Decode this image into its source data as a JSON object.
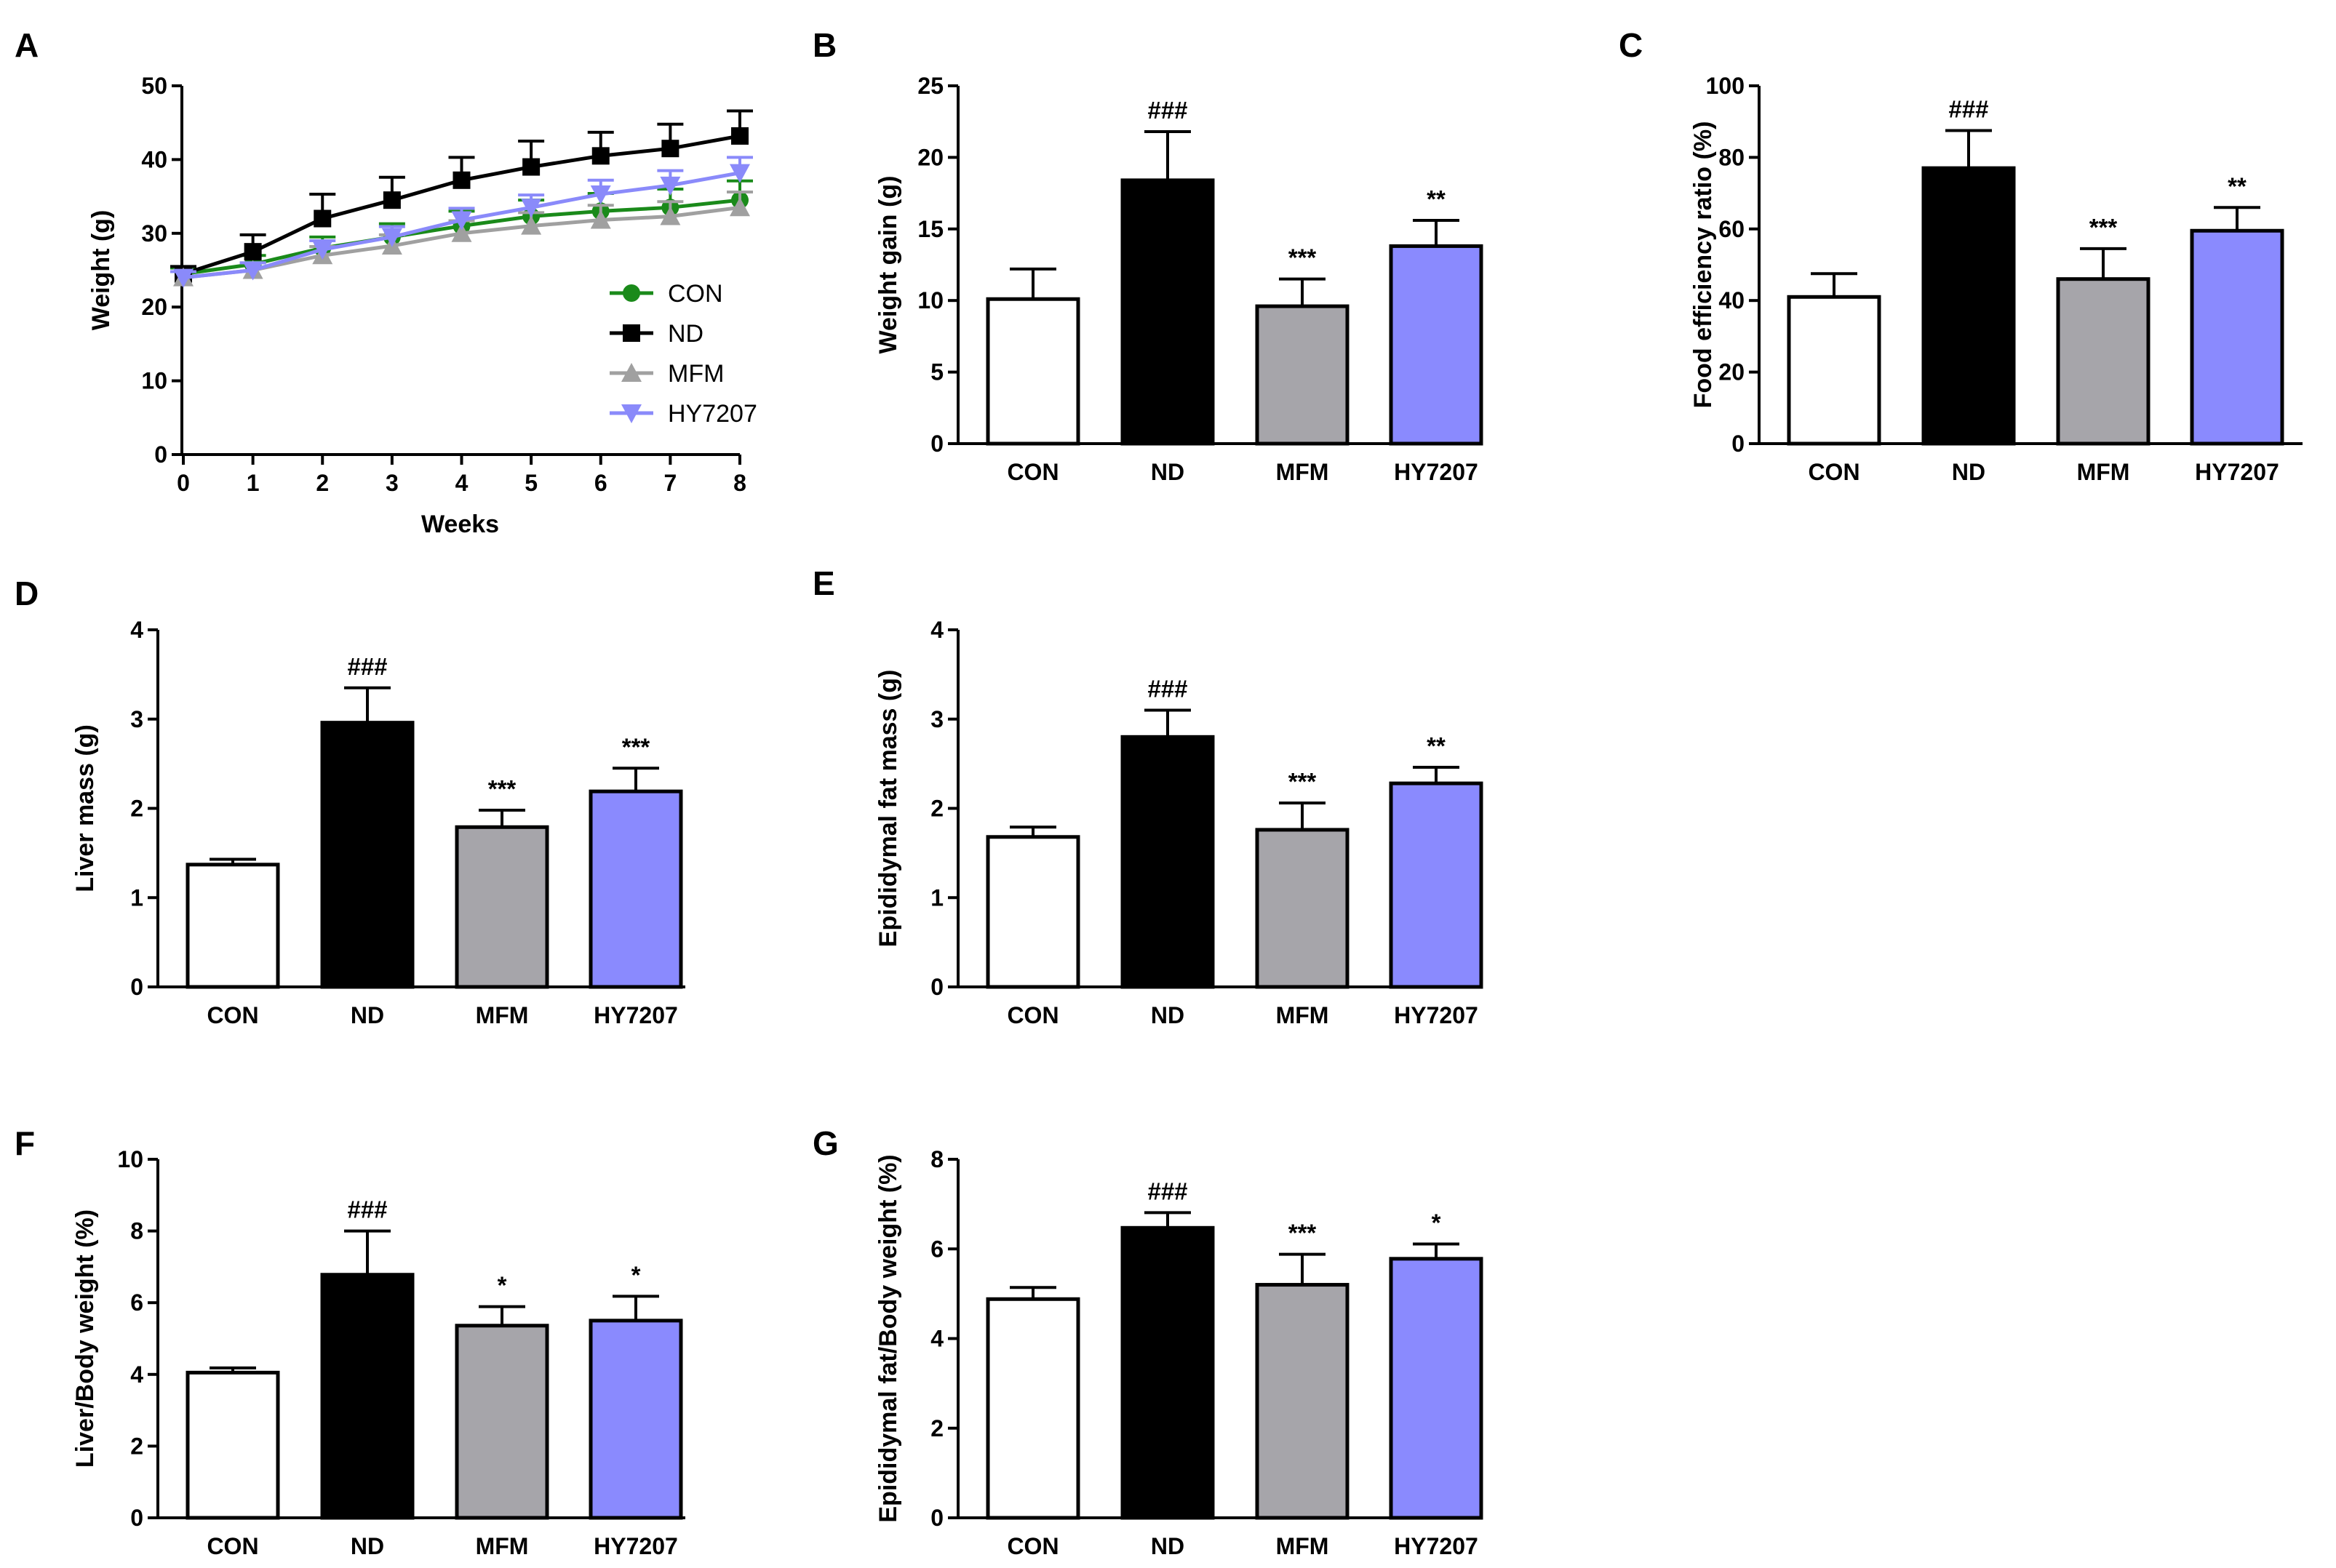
{
  "chart_data": [
    {
      "panel": "A",
      "type": "line",
      "xlabel": "Weeks",
      "ylabel": "Weight (g)",
      "x": [
        0,
        1,
        2,
        3,
        4,
        5,
        6,
        7,
        8
      ],
      "ylim": [
        0,
        50
      ],
      "yticks": [
        0,
        10,
        20,
        30,
        40,
        50
      ],
      "legend_position": "bottom-right",
      "series": [
        {
          "name": "CON",
          "color": "#1a8a1a",
          "marker": "circle",
          "values": [
            24.5,
            25.8,
            28.0,
            29.5,
            31.0,
            32.3,
            33.0,
            33.5,
            34.5
          ],
          "errors": [
            0.8,
            1.2,
            1.5,
            1.8,
            2.0,
            2.2,
            2.4,
            2.5,
            2.6
          ]
        },
        {
          "name": "ND",
          "color": "#000000",
          "marker": "square",
          "values": [
            24.5,
            27.5,
            32.0,
            34.5,
            37.2,
            39.0,
            40.5,
            41.5,
            43.2
          ],
          "errors": [
            1.0,
            2.3,
            3.3,
            3.1,
            3.1,
            3.5,
            3.2,
            3.3,
            3.4
          ]
        },
        {
          "name": "MFM",
          "color": "#a0a0a0",
          "marker": "triangle-up",
          "values": [
            24.0,
            25.0,
            27.0,
            28.3,
            30.0,
            31.0,
            31.8,
            32.3,
            33.5
          ],
          "errors": [
            0.8,
            1.0,
            1.2,
            1.5,
            1.7,
            1.8,
            2.0,
            2.0,
            2.1
          ]
        },
        {
          "name": "HY7207",
          "color": "#8a8afa",
          "marker": "triangle-down",
          "values": [
            24.0,
            25.0,
            27.8,
            29.5,
            31.8,
            33.5,
            35.3,
            36.5,
            38.2
          ],
          "errors": [
            0.8,
            1.0,
            1.2,
            1.4,
            1.6,
            1.7,
            1.9,
            2.0,
            2.1
          ]
        }
      ]
    },
    {
      "panel": "B",
      "type": "bar",
      "ylabel": "Weight gain (g)",
      "categories": [
        "CON",
        "ND",
        "MFM",
        "HY7207"
      ],
      "values": [
        10.1,
        18.4,
        9.6,
        13.8
      ],
      "errors": [
        2.1,
        3.4,
        1.9,
        1.8
      ],
      "colors": [
        "#ffffff",
        "#000000",
        "#a6a5aa",
        "#8a8afe"
      ],
      "annotations": [
        "",
        "###",
        "***",
        "**"
      ],
      "ylim": [
        0,
        25
      ],
      "yticks": [
        0,
        5,
        10,
        15,
        20,
        25
      ]
    },
    {
      "panel": "C",
      "type": "bar",
      "ylabel": "Food efficiency ratio (%)",
      "categories": [
        "CON",
        "ND",
        "MFM",
        "HY7207"
      ],
      "values": [
        41,
        77,
        46,
        59.5
      ],
      "errors": [
        6.5,
        10.5,
        8.5,
        6.5
      ],
      "colors": [
        "#ffffff",
        "#000000",
        "#a6a5aa",
        "#8a8afe"
      ],
      "annotations": [
        "",
        "###",
        "***",
        "**"
      ],
      "ylim": [
        0,
        100
      ],
      "yticks": [
        0,
        20,
        40,
        60,
        80,
        100
      ]
    },
    {
      "panel": "D",
      "type": "bar",
      "ylabel": "Liver mass (g)",
      "categories": [
        "CON",
        "ND",
        "MFM",
        "HY7207"
      ],
      "values": [
        1.37,
        2.96,
        1.79,
        2.19
      ],
      "errors": [
        0.06,
        0.39,
        0.19,
        0.26
      ],
      "colors": [
        "#ffffff",
        "#000000",
        "#a6a5aa",
        "#8a8afe"
      ],
      "annotations": [
        "",
        "###",
        "***",
        "***"
      ],
      "ylim": [
        0,
        4
      ],
      "yticks": [
        0,
        1,
        2,
        3,
        4
      ]
    },
    {
      "panel": "E",
      "type": "bar",
      "ylabel": "Epididymal fat mass (g)",
      "categories": [
        "CON",
        "ND",
        "MFM",
        "HY7207"
      ],
      "values": [
        1.68,
        2.8,
        1.76,
        2.28
      ],
      "errors": [
        0.11,
        0.3,
        0.3,
        0.18
      ],
      "colors": [
        "#ffffff",
        "#000000",
        "#a6a5aa",
        "#8a8afe"
      ],
      "annotations": [
        "",
        "###",
        "***",
        "**"
      ],
      "ylim": [
        0,
        4
      ],
      "yticks": [
        0,
        1,
        2,
        3,
        4
      ]
    },
    {
      "panel": "F",
      "type": "bar",
      "ylabel": "Liver/Body weight (%)",
      "categories": [
        "CON",
        "ND",
        "MFM",
        "HY7207"
      ],
      "values": [
        4.05,
        6.78,
        5.36,
        5.5
      ],
      "errors": [
        0.13,
        1.22,
        0.53,
        0.68
      ],
      "colors": [
        "#ffffff",
        "#000000",
        "#a6a5aa",
        "#8a8afe"
      ],
      "annotations": [
        "",
        "###",
        "*",
        "*"
      ],
      "ylim": [
        0,
        10
      ],
      "yticks": [
        0,
        2,
        4,
        6,
        8,
        10
      ]
    },
    {
      "panel": "G",
      "type": "bar",
      "ylabel": "Epididymal fat/Body weight (%)",
      "categories": [
        "CON",
        "ND",
        "MFM",
        "HY7207"
      ],
      "values": [
        4.88,
        6.47,
        5.2,
        5.78
      ],
      "errors": [
        0.26,
        0.34,
        0.68,
        0.33
      ],
      "colors": [
        "#ffffff",
        "#000000",
        "#a6a5aa",
        "#8a8afe"
      ],
      "annotations": [
        "",
        "###",
        "***",
        "*"
      ],
      "ylim": [
        0,
        8
      ],
      "yticks": [
        0,
        2,
        4,
        6,
        8
      ]
    }
  ]
}
